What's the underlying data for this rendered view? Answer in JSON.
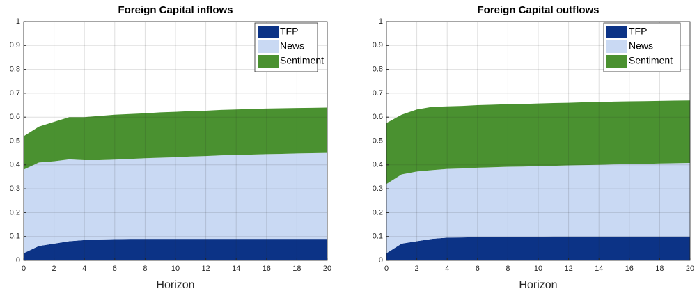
{
  "chart_data": [
    {
      "type": "stacked-area",
      "title": "Foreign Capital inflows",
      "xlabel": "Horizon",
      "x": [
        0,
        1,
        2,
        3,
        4,
        5,
        6,
        7,
        8,
        9,
        10,
        11,
        12,
        13,
        14,
        15,
        16,
        17,
        18,
        19,
        20
      ],
      "series": [
        {
          "name": "TFP",
          "color": "#0c3386",
          "values": [
            0.03,
            0.06,
            0.07,
            0.08,
            0.085,
            0.088,
            0.089,
            0.09,
            0.09,
            0.09,
            0.09,
            0.09,
            0.09,
            0.09,
            0.09,
            0.09,
            0.09,
            0.09,
            0.09,
            0.09,
            0.09
          ]
        },
        {
          "name": "News",
          "color": "#c9d9f3",
          "values": [
            0.35,
            0.35,
            0.345,
            0.343,
            0.335,
            0.332,
            0.333,
            0.335,
            0.338,
            0.34,
            0.342,
            0.345,
            0.347,
            0.35,
            0.352,
            0.353,
            0.355,
            0.356,
            0.358,
            0.359,
            0.36
          ]
        },
        {
          "name": "Sentiment",
          "color": "#4a9130",
          "values": [
            0.14,
            0.15,
            0.165,
            0.177,
            0.18,
            0.185,
            0.188,
            0.188,
            0.188,
            0.19,
            0.19,
            0.19,
            0.19,
            0.19,
            0.19,
            0.191,
            0.191,
            0.191,
            0.19,
            0.19,
            0.19
          ]
        }
      ],
      "xlim": [
        0,
        20
      ],
      "xticks": [
        0,
        2,
        4,
        6,
        8,
        10,
        12,
        14,
        16,
        18,
        20
      ],
      "ylim": [
        0,
        1
      ],
      "yticks": [
        0,
        0.1,
        0.2,
        0.3,
        0.4,
        0.5,
        0.6,
        0.7,
        0.8,
        0.9,
        1
      ],
      "grid": true,
      "legend": "upper-right"
    },
    {
      "type": "stacked-area",
      "title": "Foreign Capital outflows",
      "xlabel": "Horizon",
      "x": [
        0,
        1,
        2,
        3,
        4,
        5,
        6,
        7,
        8,
        9,
        10,
        11,
        12,
        13,
        14,
        15,
        16,
        17,
        18,
        19,
        20
      ],
      "series": [
        {
          "name": "TFP",
          "color": "#0c3386",
          "values": [
            0.03,
            0.07,
            0.08,
            0.09,
            0.095,
            0.096,
            0.097,
            0.098,
            0.098,
            0.099,
            0.099,
            0.1,
            0.1,
            0.1,
            0.1,
            0.1,
            0.1,
            0.1,
            0.1,
            0.1,
            0.1
          ]
        },
        {
          "name": "News",
          "color": "#c9d9f3",
          "values": [
            0.29,
            0.29,
            0.292,
            0.288,
            0.288,
            0.289,
            0.291,
            0.292,
            0.294,
            0.294,
            0.296,
            0.296,
            0.298,
            0.299,
            0.3,
            0.302,
            0.303,
            0.304,
            0.306,
            0.307,
            0.308
          ]
        },
        {
          "name": "Sentiment",
          "color": "#4a9130",
          "values": [
            0.255,
            0.25,
            0.26,
            0.265,
            0.262,
            0.262,
            0.262,
            0.262,
            0.262,
            0.262,
            0.262,
            0.263,
            0.262,
            0.263,
            0.263,
            0.263,
            0.263,
            0.263,
            0.262,
            0.262,
            0.262
          ]
        }
      ],
      "xlim": [
        0,
        20
      ],
      "xticks": [
        0,
        2,
        4,
        6,
        8,
        10,
        12,
        14,
        16,
        18,
        20
      ],
      "ylim": [
        0,
        1
      ],
      "yticks": [
        0,
        0.1,
        0.2,
        0.3,
        0.4,
        0.5,
        0.6,
        0.7,
        0.8,
        0.9,
        1
      ],
      "grid": true,
      "legend": "upper-right"
    }
  ]
}
